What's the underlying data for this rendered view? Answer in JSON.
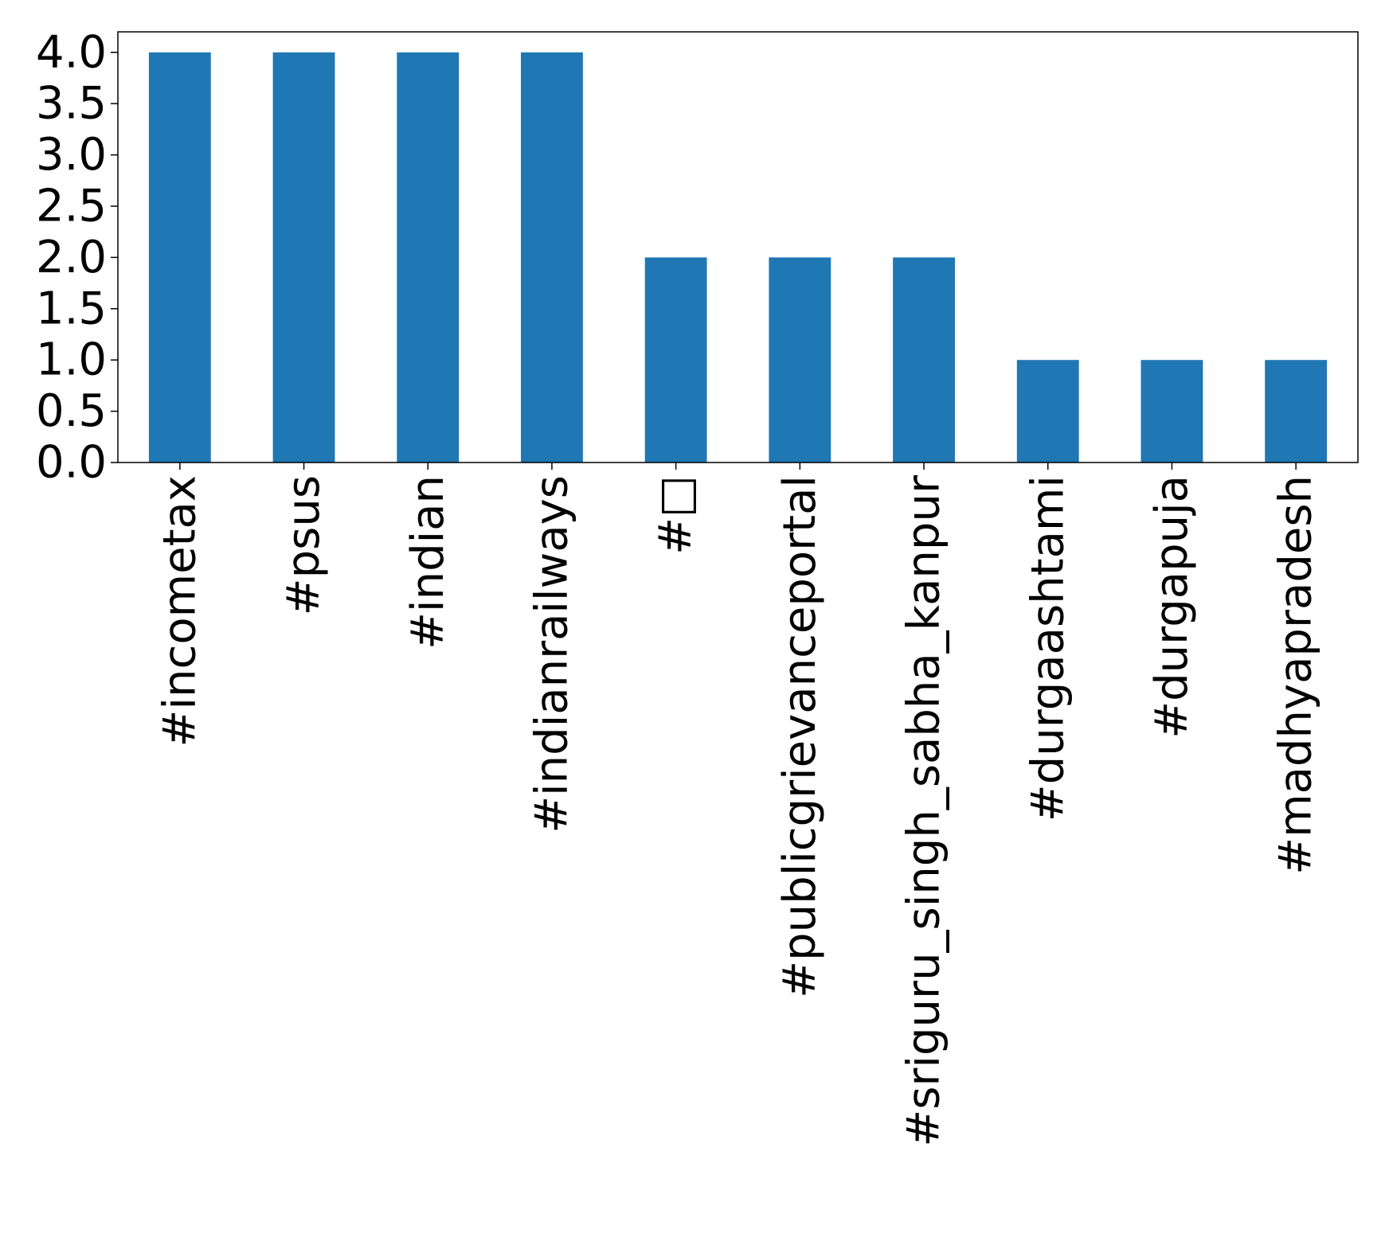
{
  "chart_data": {
    "type": "bar",
    "categories": [
      "#incometax",
      "#psus",
      "#indian",
      "#indianrailways",
      "#□",
      "#publicgrievanceportal",
      "#sriguru_singh_sabha_kanpur",
      "#durgaashtami",
      "#durgapuja",
      "#madhyapradesh"
    ],
    "values": [
      4,
      4,
      4,
      4,
      2,
      2,
      2,
      1,
      1,
      1
    ],
    "title": "",
    "xlabel": "",
    "ylabel": "",
    "ylim": [
      0,
      4.2
    ],
    "yticks": [
      "0.0",
      "0.5",
      "1.0",
      "1.5",
      "2.0",
      "2.5",
      "3.0",
      "3.5",
      "4.0"
    ],
    "bar_color": "#1f77b4",
    "grid": false,
    "legend": "none"
  }
}
